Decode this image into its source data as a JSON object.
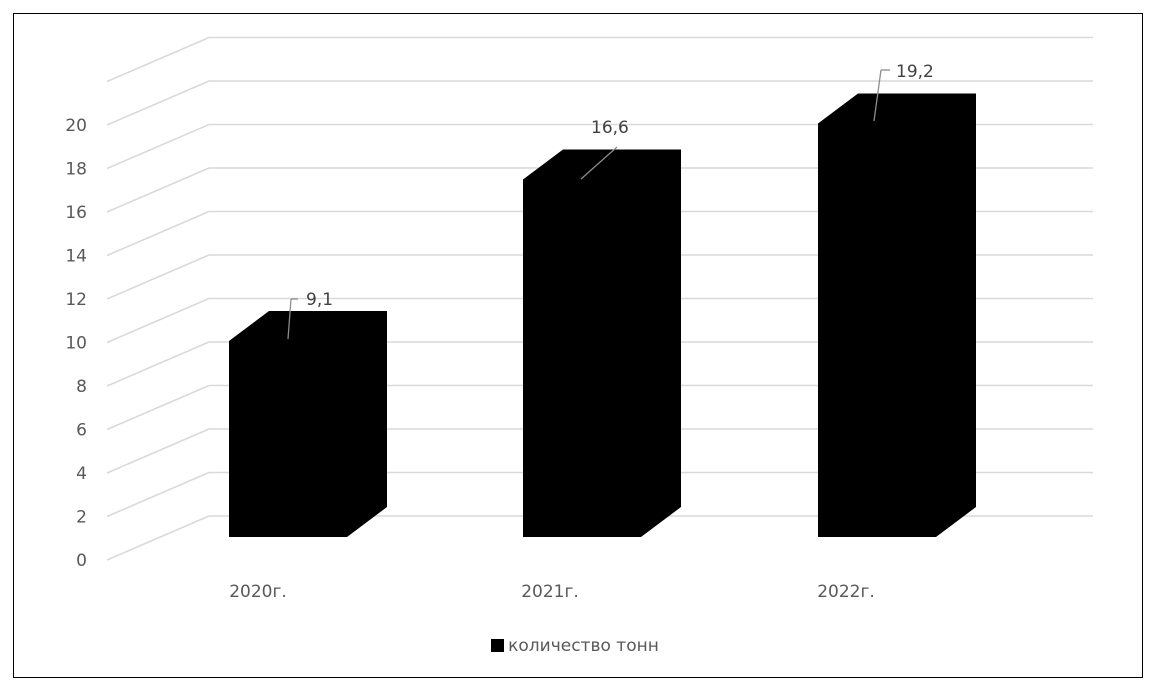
{
  "chart_data": {
    "type": "bar",
    "style": "3d-column",
    "categories": [
      "2020г.",
      "2021г.",
      "2022г."
    ],
    "series": [
      {
        "name": "количество тонн",
        "values": [
          9.1,
          16.6,
          19.2
        ]
      }
    ],
    "data_labels": [
      "9,1",
      "16,6",
      "19,2"
    ],
    "y_ticks": [
      "0",
      "2",
      "4",
      "6",
      "8",
      "10",
      "12",
      "14",
      "16",
      "18",
      "20"
    ],
    "ylim": [
      0,
      20
    ],
    "grid": true,
    "legend_position": "bottom",
    "bar_color": "#000000",
    "gridline_color": "#d9d9d9"
  }
}
